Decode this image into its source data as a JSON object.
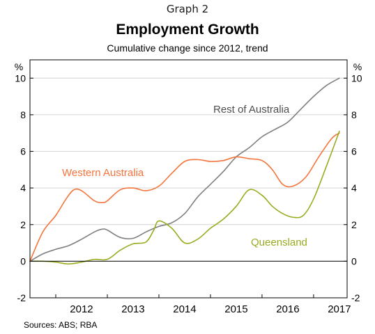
{
  "header": {
    "graph_label": "Graph 2",
    "sources": "Sources:  ABS; RBA"
  },
  "chart_data": {
    "type": "line",
    "title": "Employment Growth",
    "subtitle": "Cumulative change since 2012, trend",
    "y_unit_left": "%",
    "y_unit_right": "%",
    "ylim": [
      -2,
      11
    ],
    "yticks": [
      -2,
      0,
      2,
      4,
      6,
      8,
      10
    ],
    "xlim": [
      2011.5,
      2017.65
    ],
    "xticks": [
      "2012",
      "2013",
      "2014",
      "2015",
      "2016",
      "2017"
    ],
    "grid": true,
    "series": [
      {
        "name": "Rest of Australia",
        "color": "#7f7f7f",
        "x": [
          2011.5,
          2011.75,
          2012.0,
          2012.25,
          2012.5,
          2012.75,
          2012.9,
          2013.0,
          2013.25,
          2013.5,
          2013.75,
          2014.0,
          2014.25,
          2014.5,
          2014.75,
          2015.0,
          2015.25,
          2015.5,
          2015.75,
          2016.0,
          2016.25,
          2016.5,
          2016.75,
          2017.0,
          2017.25,
          2017.5
        ],
        "y": [
          0.0,
          0.4,
          0.65,
          0.85,
          1.2,
          1.6,
          1.75,
          1.7,
          1.3,
          1.25,
          1.6,
          1.9,
          2.1,
          2.6,
          3.5,
          4.2,
          4.9,
          5.7,
          6.2,
          6.8,
          7.2,
          7.6,
          8.3,
          9.0,
          9.6,
          10.0
        ]
      },
      {
        "name": "Western Australia",
        "color": "#f4743b",
        "x": [
          2011.5,
          2011.75,
          2012.0,
          2012.2,
          2012.35,
          2012.5,
          2012.75,
          2012.9,
          2013.0,
          2013.25,
          2013.5,
          2013.75,
          2014.0,
          2014.25,
          2014.5,
          2014.75,
          2015.0,
          2015.25,
          2015.5,
          2015.75,
          2016.0,
          2016.2,
          2016.4,
          2016.6,
          2016.85,
          2017.1,
          2017.35,
          2017.5
        ],
        "y": [
          0.0,
          1.6,
          2.5,
          3.4,
          3.9,
          3.85,
          3.3,
          3.2,
          3.3,
          3.9,
          4.0,
          3.85,
          4.1,
          4.8,
          5.45,
          5.55,
          5.45,
          5.5,
          5.7,
          5.6,
          5.5,
          5.0,
          4.2,
          4.1,
          4.6,
          5.7,
          6.7,
          7.0
        ]
      },
      {
        "name": "Queensland",
        "color": "#9aab1f",
        "x": [
          2011.5,
          2011.75,
          2012.0,
          2012.25,
          2012.5,
          2012.75,
          2013.0,
          2013.25,
          2013.5,
          2013.75,
          2013.9,
          2014.0,
          2014.25,
          2014.5,
          2014.75,
          2015.0,
          2015.25,
          2015.5,
          2015.75,
          2016.0,
          2016.2,
          2016.4,
          2016.6,
          2016.8,
          2017.0,
          2017.25,
          2017.5
        ],
        "y": [
          0.0,
          0.0,
          -0.05,
          -0.15,
          -0.05,
          0.1,
          0.1,
          0.6,
          0.95,
          1.05,
          1.7,
          2.2,
          1.8,
          1.0,
          1.2,
          1.8,
          2.3,
          3.0,
          3.9,
          3.6,
          3.0,
          2.6,
          2.4,
          2.5,
          3.4,
          5.2,
          7.1
        ]
      }
    ],
    "annotations": [
      {
        "text": "Rest of Australia",
        "color": "#4d4d4d",
        "series": "Rest of Australia"
      },
      {
        "text": "Western Australia",
        "color": "#f4743b",
        "series": "Western Australia"
      },
      {
        "text": "Queensland",
        "color": "#9aab1f",
        "series": "Queensland"
      }
    ]
  }
}
